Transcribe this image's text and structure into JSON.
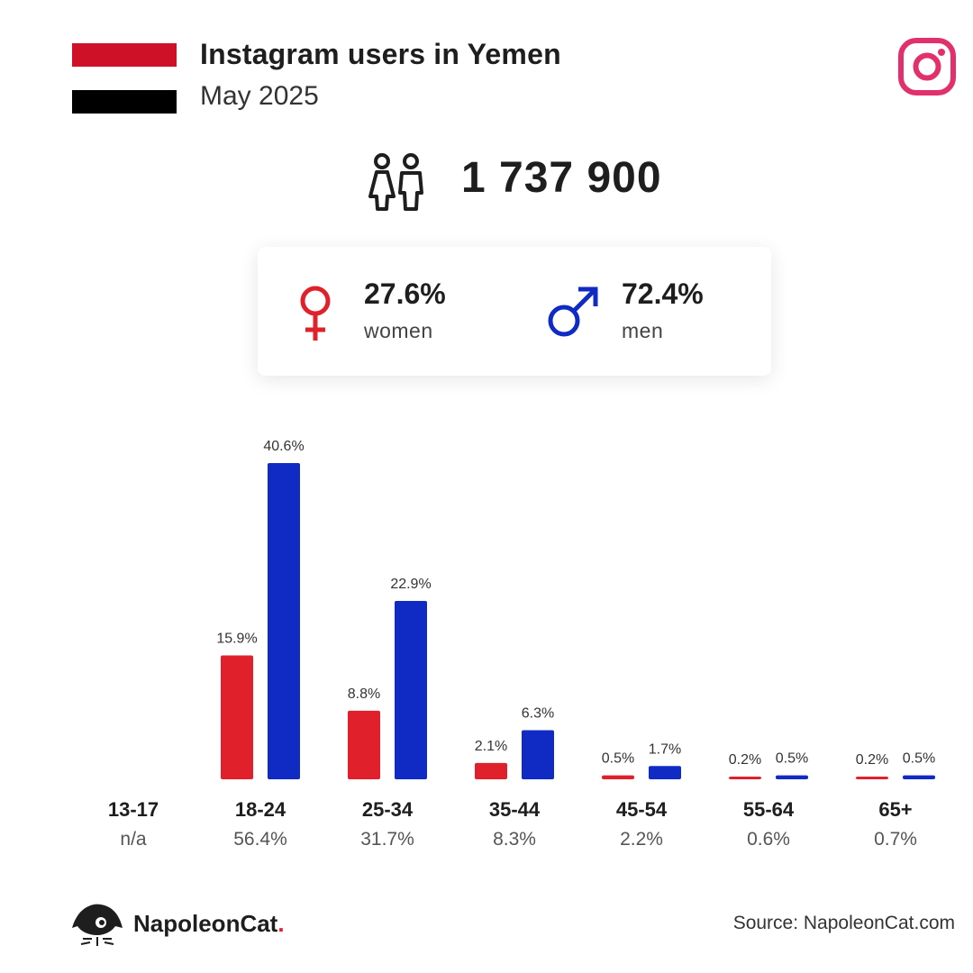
{
  "header": {
    "title": "Instagram users in Yemen",
    "subtitle": "May 2025"
  },
  "total": {
    "value": "1 737 900",
    "icon": "people-icon"
  },
  "gender": {
    "women": {
      "pct": "27.6%",
      "label": "women",
      "color": "#e0202b",
      "icon": "female-icon"
    },
    "men": {
      "pct": "72.4%",
      "label": "men",
      "color": "#0f2bc4",
      "icon": "male-icon"
    }
  },
  "colors": {
    "women": "#e0202b",
    "men": "#0f2bc4",
    "instagram": "#e1306c"
  },
  "chart_data": {
    "type": "bar",
    "categories": [
      "13-17",
      "18-24",
      "25-34",
      "35-44",
      "45-54",
      "55-64",
      "65+"
    ],
    "totals": [
      "n/a",
      "56.4%",
      "31.7%",
      "8.3%",
      "2.2%",
      "0.6%",
      "0.7%"
    ],
    "series": [
      {
        "key": "women",
        "values": [
          null,
          15.9,
          8.8,
          2.1,
          0.5,
          0.2,
          0.2
        ],
        "labels": [
          null,
          "15.9%",
          "8.8%",
          "2.1%",
          "0.5%",
          "0.2%",
          "0.2%"
        ]
      },
      {
        "key": "men",
        "values": [
          null,
          40.6,
          22.9,
          6.3,
          1.7,
          0.5,
          0.5
        ],
        "labels": [
          null,
          "40.6%",
          "22.9%",
          "6.3%",
          "1.7%",
          "0.5%",
          "0.5%"
        ]
      }
    ],
    "ylim": [
      0,
      40.6
    ],
    "grid": false
  },
  "footer": {
    "brand": "NapoleonCat",
    "brand_dot": ".",
    "source": "Source: NapoleonCat.com"
  }
}
